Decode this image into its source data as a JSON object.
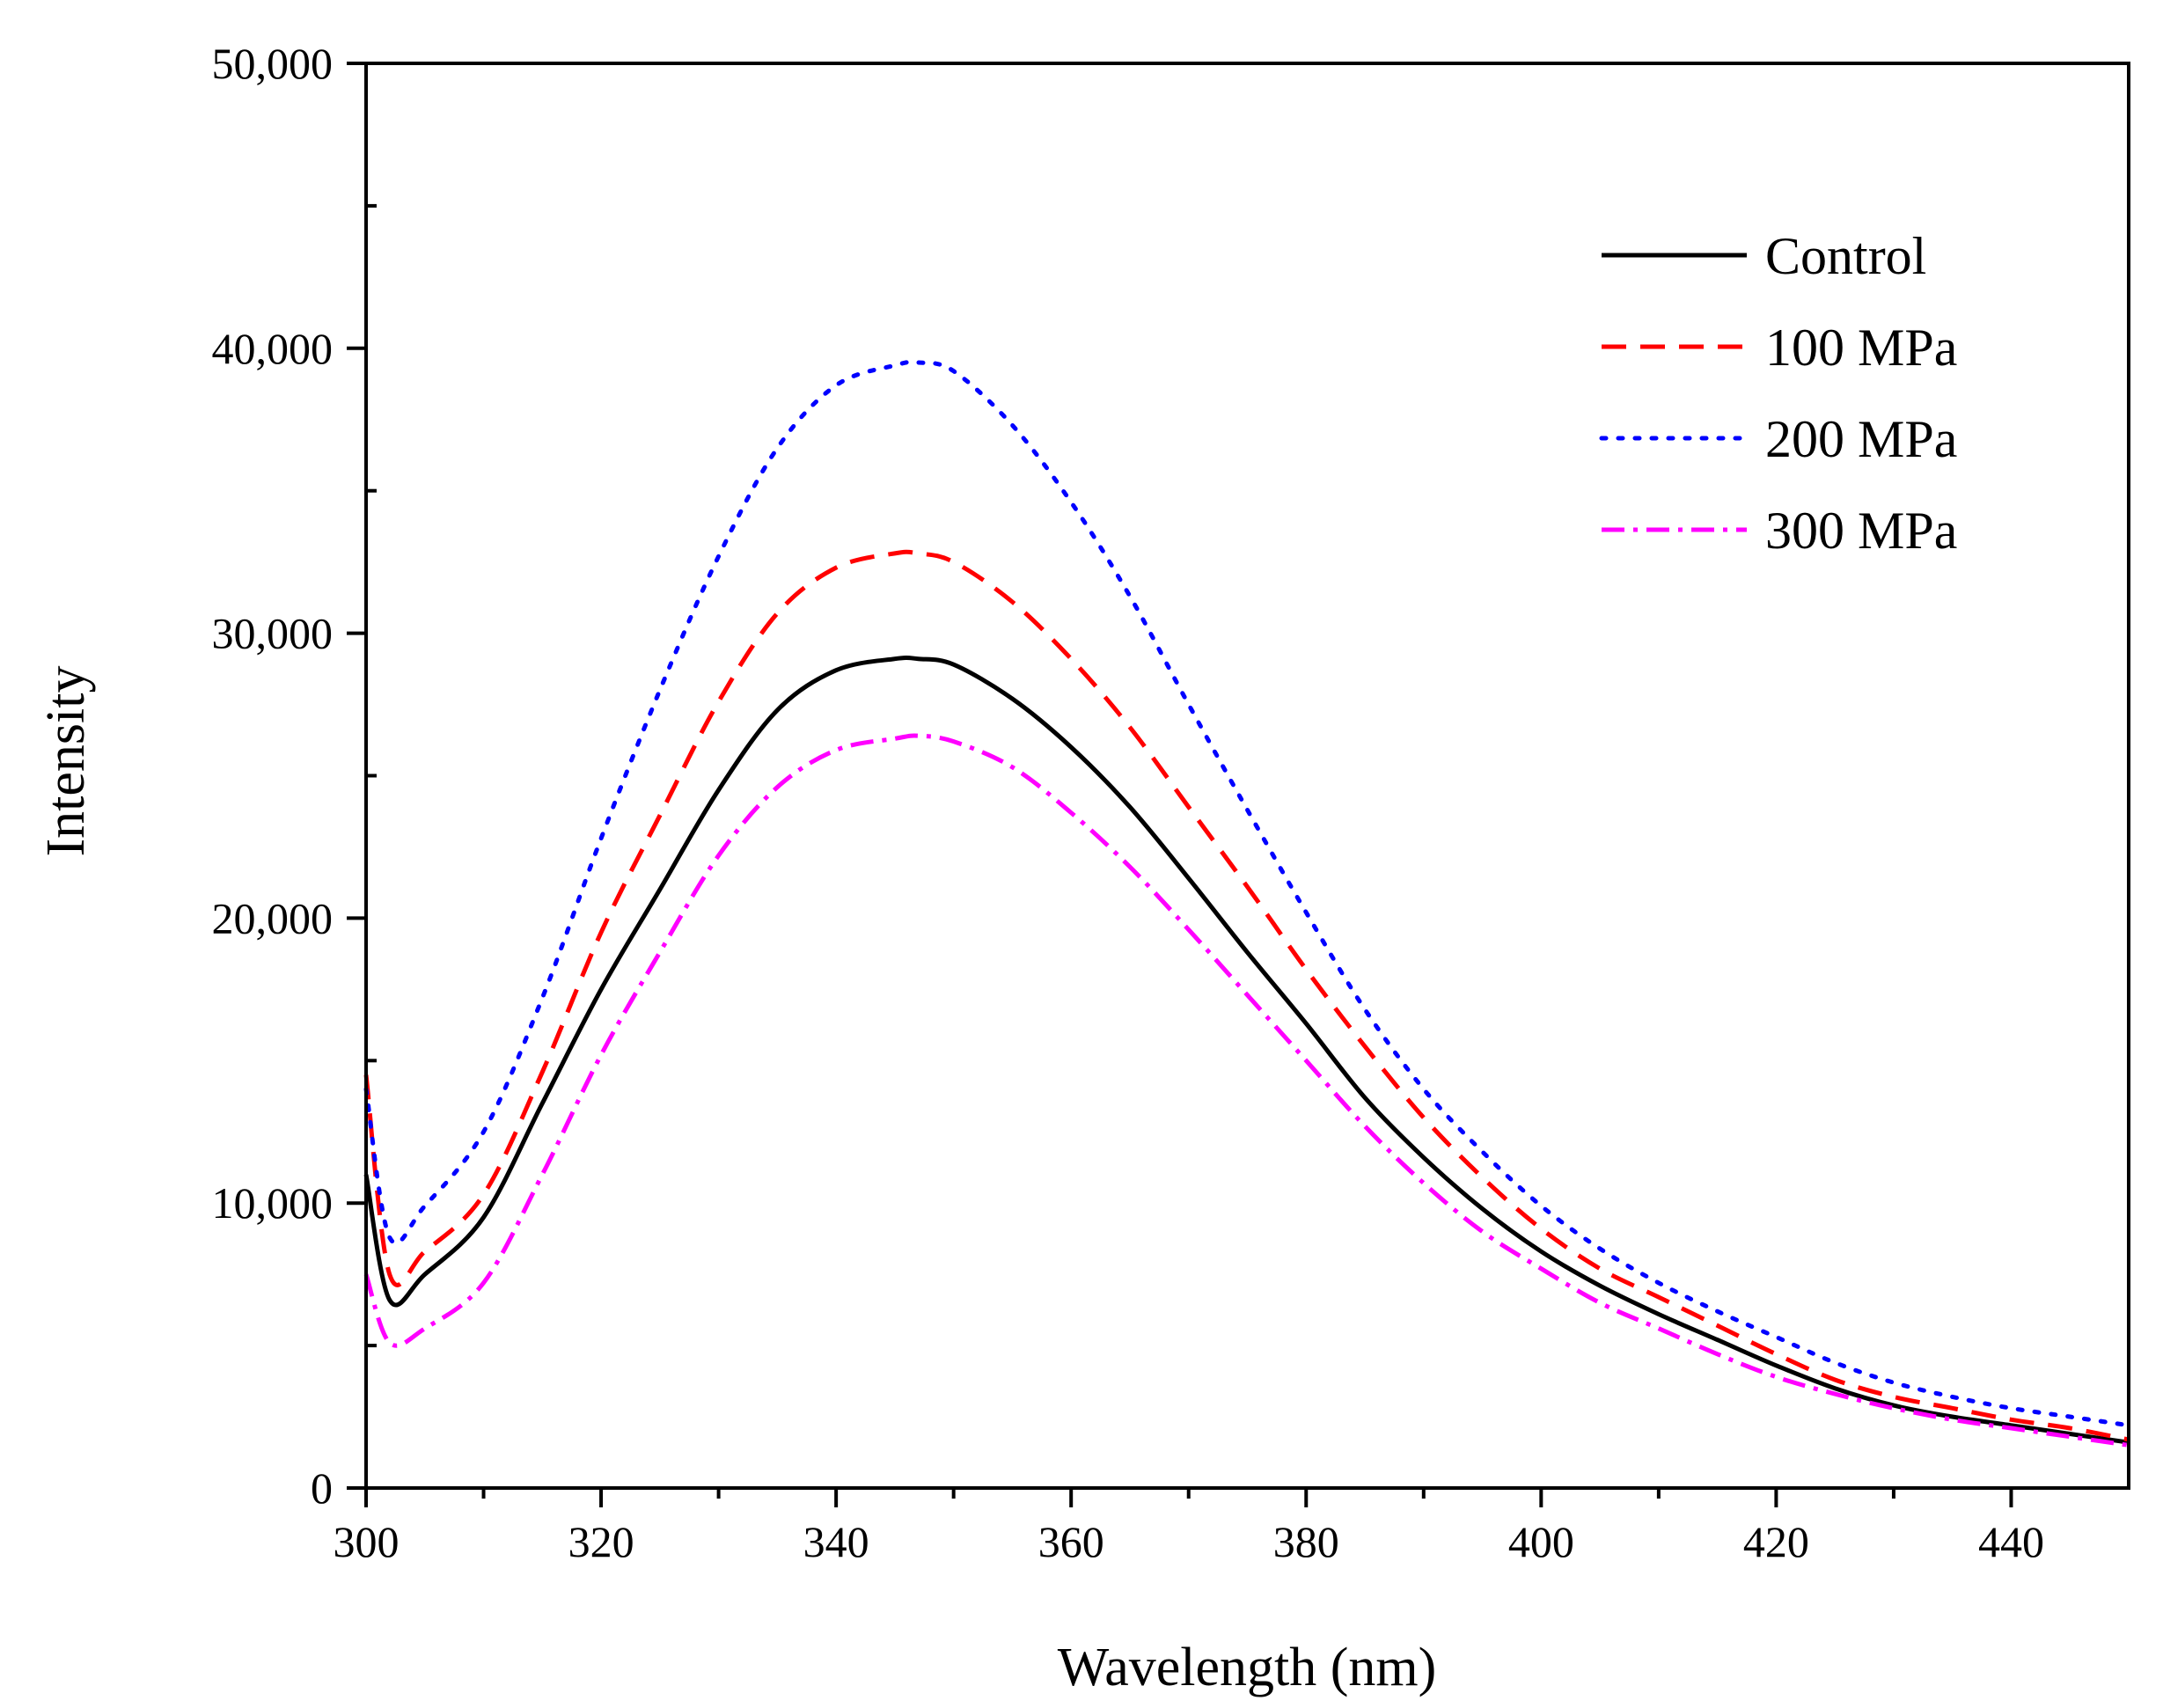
{
  "chart_data": {
    "type": "line",
    "title": "",
    "xlabel": "Wavelength (nm)",
    "ylabel": "Intensity",
    "xlim": [
      300,
      450
    ],
    "ylim": [
      0,
      50000
    ],
    "x_ticks": [
      300,
      320,
      340,
      360,
      380,
      400,
      420,
      440
    ],
    "x_tick_labels": [
      "300",
      "320",
      "340",
      "360",
      "380",
      "400",
      "420",
      "440"
    ],
    "y_ticks": [
      0,
      10000,
      20000,
      30000,
      40000,
      50000
    ],
    "y_tick_labels": [
      "0",
      "10,000",
      "20,000",
      "30,000",
      "40,000",
      "50,000"
    ],
    "grid": false,
    "legend_position": "top-right",
    "x": [
      300,
      302,
      305,
      310,
      315,
      320,
      325,
      330,
      335,
      340,
      345,
      347,
      350,
      355,
      360,
      365,
      370,
      375,
      380,
      385,
      390,
      395,
      400,
      405,
      410,
      415,
      420,
      425,
      430,
      435,
      440,
      445,
      450
    ],
    "series": [
      {
        "name": "Control",
        "color": "#000000",
        "dash": "solid",
        "values": [
          11000,
          6600,
          7500,
          9500,
          13500,
          17500,
          21000,
          24500,
          27300,
          28700,
          29100,
          29100,
          28900,
          27700,
          26000,
          23900,
          21400,
          18800,
          16300,
          13700,
          11600,
          9800,
          8300,
          7100,
          6100,
          5200,
          4300,
          3500,
          2900,
          2500,
          2200,
          1900,
          1600
        ]
      },
      {
        "name": "100 MPa",
        "color": "#ff0000",
        "dash": "dashed",
        "values": [
          14500,
          7500,
          8300,
          10300,
          14600,
          19500,
          23600,
          27600,
          30700,
          32300,
          32800,
          32800,
          32500,
          31100,
          29100,
          26700,
          23900,
          21100,
          18200,
          15500,
          13000,
          10900,
          9100,
          7700,
          6700,
          5700,
          4700,
          3800,
          3200,
          2800,
          2400,
          2100,
          1700
        ]
      },
      {
        "name": "200 MPa",
        "color": "#0000ff",
        "dash": "dotted",
        "values": [
          14000,
          8800,
          9900,
          12500,
          17200,
          22800,
          28000,
          32700,
          36500,
          38700,
          39400,
          39500,
          39200,
          37300,
          34600,
          31300,
          27500,
          23800,
          20200,
          16800,
          14000,
          11800,
          9900,
          8400,
          7200,
          6200,
          5300,
          4400,
          3700,
          3200,
          2800,
          2500,
          2200
        ]
      },
      {
        "name": "300 MPa",
        "color": "#ff00ff",
        "dash": "dashdot",
        "values": [
          7500,
          5100,
          5600,
          7200,
          11000,
          15200,
          18800,
          22200,
          24600,
          25900,
          26300,
          26400,
          26200,
          25300,
          23700,
          21800,
          19600,
          17300,
          15000,
          12700,
          10700,
          9000,
          7700,
          6500,
          5600,
          4700,
          3900,
          3300,
          2800,
          2400,
          2100,
          1800,
          1500
        ]
      }
    ]
  }
}
